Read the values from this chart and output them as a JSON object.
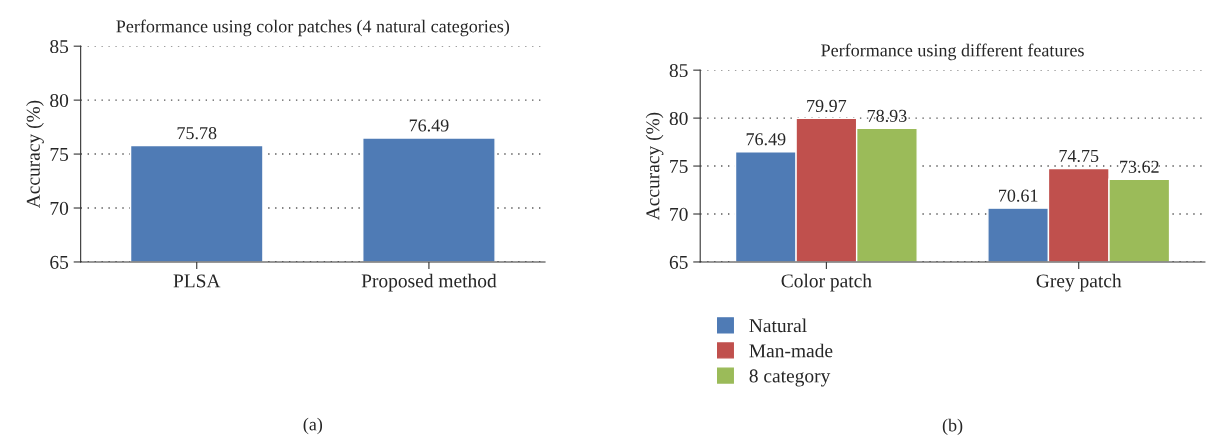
{
  "chart_data": [
    {
      "type": "bar",
      "title": "Performance using color patches (4 natural categories)",
      "ylabel": "Accuracy (%)",
      "categories": [
        "PLSA",
        "Proposed method"
      ],
      "values": [
        75.78,
        76.49
      ],
      "color": "#4f7bb5",
      "ylim": [
        65,
        85
      ],
      "yticks": [
        65,
        70,
        75,
        80,
        85
      ],
      "grid": "y",
      "data_labels": true,
      "annotations": [
        "(a)"
      ]
    },
    {
      "type": "bar",
      "title": "Performance using different features",
      "ylabel": "Accuracy (%)",
      "categories": [
        "Color patch",
        "Grey patch"
      ],
      "series": [
        {
          "name": "Natural",
          "color": "#4f7bb5",
          "values": [
            76.49,
            70.61
          ]
        },
        {
          "name": "Man-made",
          "color": "#c0504d",
          "values": [
            79.97,
            74.75
          ]
        },
        {
          "name": "8 category",
          "color": "#9bbb59",
          "values": [
            78.93,
            73.62
          ]
        }
      ],
      "ylim": [
        65,
        85
      ],
      "yticks": [
        65,
        70,
        75,
        80,
        85
      ],
      "grid": "y",
      "data_labels": true,
      "legend": "bottom",
      "annotations": [
        "(b)"
      ]
    }
  ]
}
